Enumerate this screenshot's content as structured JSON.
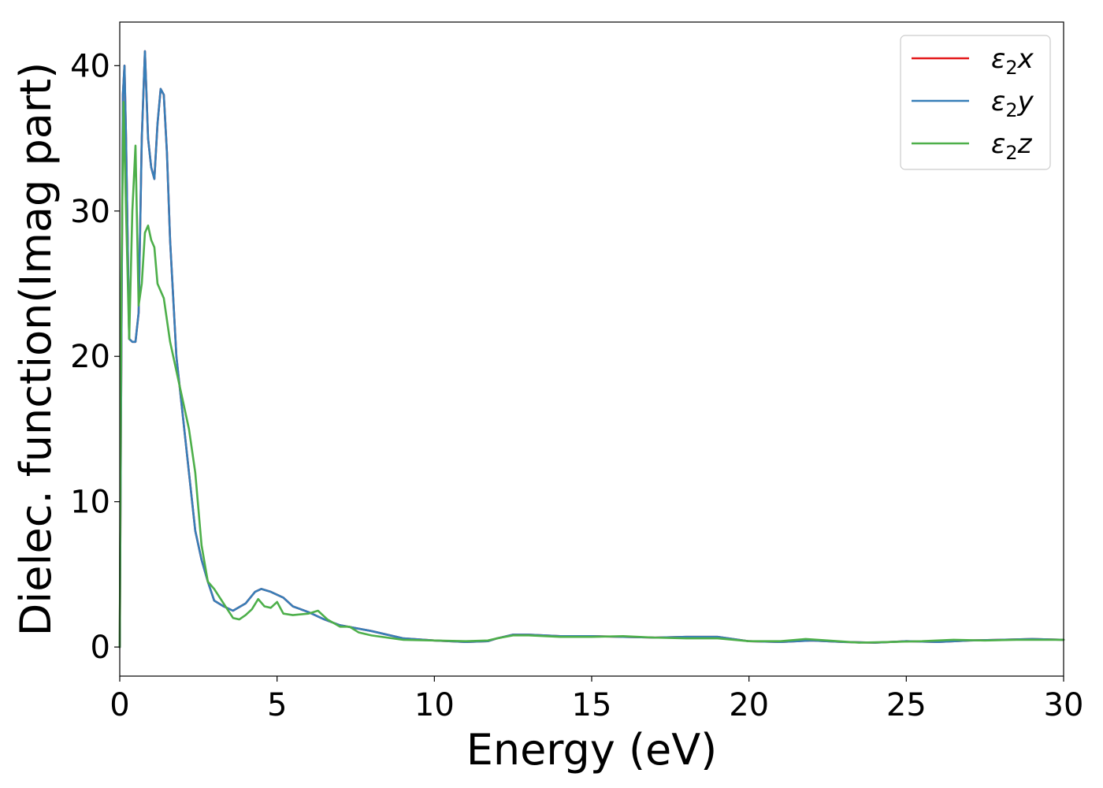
{
  "chart_data": {
    "type": "line",
    "title": "",
    "xlabel": "Energy (eV)",
    "ylabel": "Dielec. function(Imag part)",
    "xlim": [
      0,
      30
    ],
    "ylim": [
      -2,
      43
    ],
    "xticks": [
      0,
      5,
      10,
      15,
      20,
      25,
      30
    ],
    "yticks": [
      0,
      10,
      20,
      30,
      40
    ],
    "grid": false,
    "legend_position": "top-right",
    "series": [
      {
        "name": "ε₂x",
        "legend_base": "ε",
        "legend_sub": "2",
        "legend_suffix": "x",
        "color": "#e41a1c",
        "x": [
          0,
          0.05,
          0.1,
          0.15,
          0.2,
          0.3,
          0.4,
          0.5,
          0.6,
          0.7,
          0.8,
          0.9,
          1.0,
          1.1,
          1.2,
          1.3,
          1.4,
          1.5,
          1.6,
          1.8,
          2.0,
          2.2,
          2.4,
          2.6,
          2.8,
          3.0,
          3.3,
          3.6,
          4.0,
          4.3,
          4.5,
          4.8,
          5.2,
          5.5,
          6.0,
          6.5,
          7.0,
          8.0,
          9.0,
          10.0,
          11.0,
          11.7,
          12.0,
          12.5,
          13.0,
          14.0,
          15.0,
          16.0,
          17.0,
          18.0,
          19.0,
          20.0,
          21.0,
          22.0,
          23.0,
          24.0,
          25.0,
          26.0,
          27.0,
          28.0,
          29.0,
          30.0
        ],
        "y": [
          0,
          20,
          38,
          40,
          35,
          21.2,
          21.0,
          21.0,
          23.0,
          35.0,
          41.0,
          35.0,
          33.0,
          32.2,
          36.0,
          38.4,
          38.0,
          34.0,
          28.0,
          20.0,
          16.0,
          12.0,
          8.0,
          6.0,
          4.5,
          3.2,
          2.8,
          2.5,
          3.0,
          3.8,
          4.0,
          3.8,
          3.4,
          2.8,
          2.4,
          1.9,
          1.5,
          1.1,
          0.6,
          0.45,
          0.35,
          0.4,
          0.6,
          0.85,
          0.85,
          0.75,
          0.75,
          0.7,
          0.65,
          0.7,
          0.7,
          0.4,
          0.35,
          0.45,
          0.35,
          0.3,
          0.4,
          0.35,
          0.45,
          0.5,
          0.55,
          0.5
        ]
      },
      {
        "name": "ε₂y",
        "legend_base": "ε",
        "legend_sub": "2",
        "legend_suffix": "y",
        "color": "#377eb8",
        "x": [
          0,
          0.05,
          0.1,
          0.15,
          0.2,
          0.3,
          0.4,
          0.5,
          0.6,
          0.7,
          0.8,
          0.9,
          1.0,
          1.1,
          1.2,
          1.3,
          1.4,
          1.5,
          1.6,
          1.8,
          2.0,
          2.2,
          2.4,
          2.6,
          2.8,
          3.0,
          3.3,
          3.6,
          4.0,
          4.3,
          4.5,
          4.8,
          5.2,
          5.5,
          6.0,
          6.5,
          7.0,
          8.0,
          9.0,
          10.0,
          11.0,
          11.7,
          12.0,
          12.5,
          13.0,
          14.0,
          15.0,
          16.0,
          17.0,
          18.0,
          19.0,
          20.0,
          21.0,
          22.0,
          23.0,
          24.0,
          25.0,
          26.0,
          27.0,
          28.0,
          29.0,
          30.0
        ],
        "y": [
          0,
          20,
          38,
          40,
          35,
          21.2,
          21.0,
          21.0,
          23.0,
          35.0,
          41.0,
          35.0,
          33.0,
          32.2,
          36.0,
          38.4,
          38.0,
          34.0,
          28.0,
          20.0,
          16.0,
          12.0,
          8.0,
          6.0,
          4.5,
          3.2,
          2.8,
          2.5,
          3.0,
          3.8,
          4.0,
          3.8,
          3.4,
          2.8,
          2.4,
          1.9,
          1.5,
          1.1,
          0.6,
          0.45,
          0.35,
          0.4,
          0.6,
          0.85,
          0.85,
          0.75,
          0.75,
          0.7,
          0.65,
          0.7,
          0.7,
          0.4,
          0.35,
          0.45,
          0.35,
          0.3,
          0.4,
          0.35,
          0.45,
          0.5,
          0.55,
          0.5
        ]
      },
      {
        "name": "ε₂z",
        "legend_base": "ε",
        "legend_sub": "2",
        "legend_suffix": "z",
        "color": "#4daf4a",
        "x": [
          0,
          0.05,
          0.12,
          0.2,
          0.3,
          0.4,
          0.5,
          0.6,
          0.7,
          0.8,
          0.9,
          1.0,
          1.1,
          1.2,
          1.3,
          1.4,
          1.6,
          1.8,
          2.0,
          2.2,
          2.4,
          2.6,
          2.8,
          3.0,
          3.3,
          3.6,
          3.8,
          4.0,
          4.2,
          4.4,
          4.6,
          4.8,
          5.0,
          5.2,
          5.5,
          6.0,
          6.3,
          6.6,
          7.0,
          7.3,
          7.6,
          8.0,
          9.0,
          10.0,
          11.0,
          11.7,
          12.0,
          12.5,
          13.0,
          14.0,
          15.0,
          16.0,
          17.0,
          18.0,
          19.0,
          20.0,
          21.0,
          21.8,
          22.5,
          23.5,
          24.5,
          25.5,
          26.5,
          27.5,
          28.5,
          29.5,
          30.0
        ],
        "y": [
          0,
          25,
          37.5,
          30,
          21.2,
          30.0,
          34.5,
          23.5,
          25.0,
          28.5,
          29.0,
          28.0,
          27.5,
          25.0,
          24.5,
          24.0,
          21.0,
          19.0,
          17.0,
          15.0,
          12.0,
          7.0,
          4.5,
          4.0,
          3.0,
          2.0,
          1.9,
          2.2,
          2.6,
          3.3,
          2.8,
          2.7,
          3.1,
          2.3,
          2.2,
          2.3,
          2.5,
          1.9,
          1.4,
          1.4,
          1.0,
          0.8,
          0.5,
          0.45,
          0.4,
          0.45,
          0.6,
          0.8,
          0.8,
          0.7,
          0.7,
          0.75,
          0.65,
          0.6,
          0.6,
          0.4,
          0.4,
          0.55,
          0.45,
          0.3,
          0.35,
          0.4,
          0.5,
          0.45,
          0.5,
          0.5,
          0.5
        ]
      }
    ]
  }
}
